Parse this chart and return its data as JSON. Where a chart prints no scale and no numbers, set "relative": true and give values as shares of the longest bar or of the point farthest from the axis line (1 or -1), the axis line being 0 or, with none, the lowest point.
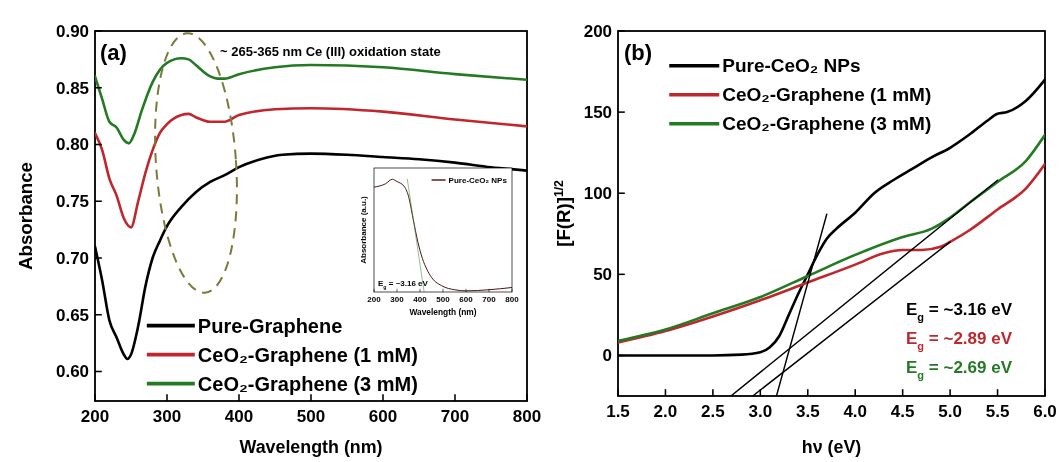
{
  "chart_data": [
    {
      "type": "line",
      "xlabel": "Wavelength (nm)",
      "ylabel": "Absorbance",
      "xlim": [
        200,
        800
      ],
      "ylim": [
        0.574,
        0.9
      ],
      "xticks": [
        200,
        300,
        400,
        500,
        600,
        700,
        800
      ],
      "yticks": [
        {
          "value": 0.6,
          "label": "0.60"
        },
        0.65,
        {
          "value": 0.7,
          "label": "0.70"
        },
        0.75,
        {
          "value": 0.8,
          "label": "0.80"
        },
        0.85,
        {
          "value": 0.9,
          "label": "0.90"
        }
      ],
      "legend": "bottom left",
      "annotations": [
        "(a)",
        "~ 265-365 nm  Ce (III) oxidation state"
      ],
      "series": [
        {
          "name": "Pure-Graphene",
          "color": "#000000",
          "x": [
            200,
            210,
            220,
            230,
            240,
            245,
            250,
            260,
            270,
            280,
            290,
            300,
            320,
            340,
            360,
            380,
            400,
            430,
            460,
            500,
            550,
            600,
            650,
            700,
            750,
            800
          ],
          "values": [
            0.71,
            0.68,
            0.645,
            0.63,
            0.615,
            0.611,
            0.615,
            0.64,
            0.675,
            0.7,
            0.715,
            0.728,
            0.745,
            0.758,
            0.767,
            0.773,
            0.78,
            0.787,
            0.791,
            0.792,
            0.791,
            0.789,
            0.787,
            0.784,
            0.78,
            0.777
          ]
        },
        {
          "name": "CeO₂-Graphene (1 mM)",
          "color": "#c0272d",
          "x": [
            200,
            210,
            220,
            230,
            240,
            250,
            260,
            270,
            280,
            290,
            300,
            320,
            330,
            340,
            360,
            380,
            400,
            450,
            500,
            600,
            700,
            800
          ],
          "values": [
            0.81,
            0.795,
            0.77,
            0.755,
            0.735,
            0.727,
            0.75,
            0.775,
            0.795,
            0.81,
            0.818,
            0.826,
            0.827,
            0.824,
            0.82,
            0.82,
            0.826,
            0.831,
            0.832,
            0.829,
            0.822,
            0.816
          ]
        },
        {
          "name": "CeO₂-Graphene (3 mM)",
          "color": "#237a23",
          "x": [
            200,
            210,
            220,
            230,
            240,
            247,
            255,
            265,
            280,
            300,
            320,
            330,
            340,
            360,
            370,
            380,
            400,
            450,
            500,
            600,
            700,
            800
          ],
          "values": [
            0.86,
            0.84,
            0.82,
            0.815,
            0.804,
            0.801,
            0.81,
            0.83,
            0.855,
            0.872,
            0.876,
            0.875,
            0.87,
            0.86,
            0.858,
            0.858,
            0.862,
            0.868,
            0.87,
            0.868,
            0.862,
            0.857
          ]
        }
      ]
    },
    {
      "type": "line",
      "relative": true,
      "tick_labels": "x",
      "xlabel": "Wavelength (nm)",
      "ylabel": "Absorbance (a.u.)",
      "xlim": [
        200,
        800
      ],
      "xticks": [
        200,
        300,
        400,
        500,
        600,
        700,
        800
      ],
      "legend": "top right",
      "annotations": [
        "E$_{g}$ = ~3.16 eV"
      ],
      "series": [
        {
          "name": "Pure-CeO₂ NPs",
          "color": "#4a1414",
          "x": [
            200,
            250,
            280,
            300,
            330,
            350,
            370,
            390,
            410,
            430,
            450,
            500,
            550,
            600,
            700,
            800
          ],
          "values": [
            0.93,
            0.96,
            1,
            0.98,
            0.94,
            0.85,
            0.65,
            0.45,
            0.3,
            0.2,
            0.13,
            0.05,
            0.02,
            0.01,
            0.02,
            0.04
          ]
        },
        {
          "color": "#3a8a3a",
          "x": [
            345,
            418
          ],
          "values": [
            1,
            0
          ]
        }
      ]
    },
    {
      "type": "line",
      "xlabel": "hν (eV)",
      "ylabel": "[F(R)]$^{1/2}$",
      "xlim": [
        1.5,
        6
      ],
      "ylim": [
        -25,
        200
      ],
      "xticks": [
        1.5,
        {
          "value": 2,
          "label": "2.0"
        },
        2.5,
        {
          "value": 3,
          "label": "3.0"
        },
        3.5,
        {
          "value": 4,
          "label": "4.0"
        },
        4.5,
        {
          "value": 5,
          "label": "5.0"
        },
        5.5,
        {
          "value": 6,
          "label": "6.0"
        }
      ],
      "yticks": [
        0,
        50,
        100,
        150,
        200
      ],
      "legend": "top left",
      "annotations": [
        "(b)",
        "E$_{g}$ = ~3.16 eV",
        "E$_{g}$ = ~2.89 eV",
        "E$_{g}$ = ~2.69 eV"
      ],
      "series": [
        {
          "name": "Pure-CeO₂ NPs",
          "color": "#000000",
          "x": [
            1.5,
            2.5,
            2.8,
            3.0,
            3.1,
            3.2,
            3.3,
            3.4,
            3.5,
            3.6,
            3.7,
            3.8,
            4.0,
            4.2,
            4.4,
            4.6,
            4.8,
            5.0,
            5.2,
            5.4,
            5.5,
            5.6,
            5.8,
            6.0
          ],
          "values": [
            0,
            0,
            0.5,
            2,
            5,
            12,
            25,
            38,
            50,
            62,
            72,
            78,
            88,
            100,
            108,
            115,
            122,
            128,
            136,
            145,
            149,
            150,
            157,
            170
          ]
        },
        {
          "name": "CeO₂-Graphene (1 mM)",
          "color": "#c0272d",
          "x": [
            1.5,
            2.0,
            2.5,
            3.0,
            3.5,
            4.0,
            4.3,
            4.5,
            4.7,
            4.9,
            5.0,
            5.2,
            5.5,
            5.8,
            6.0
          ],
          "values": [
            8,
            15,
            24,
            34,
            45,
            56,
            63,
            65,
            65,
            67,
            70,
            77,
            90,
            103,
            118
          ]
        },
        {
          "name": "CeO₂-Graphene (3 mM)",
          "color": "#237a23",
          "x": [
            1.5,
            2.0,
            2.5,
            3.0,
            3.5,
            4.0,
            4.5,
            4.8,
            5.0,
            5.2,
            5.5,
            5.8,
            6.0
          ],
          "values": [
            9,
            16,
            26,
            36,
            49,
            62,
            73,
            78,
            85,
            94,
            107,
            120,
            136
          ]
        },
        {
          "color": "#000000",
          "x": [
            3.17,
            3.7
          ],
          "values": [
            -25,
            87
          ]
        },
        {
          "color": "#000000",
          "x": [
            2.69,
            5.5
          ],
          "values": [
            -25,
            108
          ]
        },
        {
          "color": "#000000",
          "x": [
            2.92,
            5.0
          ],
          "values": [
            -25,
            70
          ]
        }
      ]
    }
  ]
}
